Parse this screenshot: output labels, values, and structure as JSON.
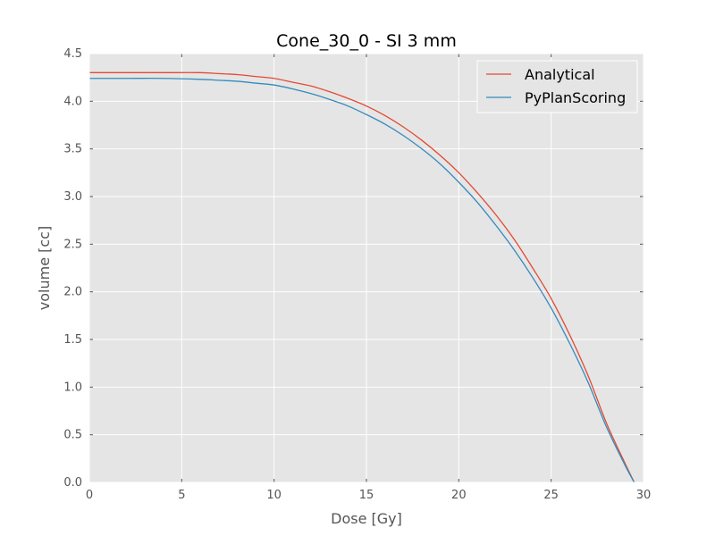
{
  "chart_data": {
    "type": "line",
    "title": "Cone_30_0 - SI 3 mm",
    "xlabel": "Dose [Gy]",
    "ylabel": "volume [cc]",
    "xlim": [
      0,
      30
    ],
    "ylim": [
      0,
      4.5
    ],
    "xticks": [
      "0",
      "5",
      "10",
      "15",
      "20",
      "25",
      "30"
    ],
    "yticks": [
      "0.0",
      "0.5",
      "1.0",
      "1.5",
      "2.0",
      "2.5",
      "3.0",
      "3.5",
      "4.0",
      "4.5"
    ],
    "grid": true,
    "legend_position": "top-right",
    "background": "#e5e5e5",
    "series": [
      {
        "name": "Analytical",
        "color": "#e24a33",
        "x": [
          0,
          2,
          4,
          6,
          7,
          8,
          9,
          10,
          11,
          12,
          13,
          14,
          15,
          16,
          17,
          18,
          19,
          20,
          21,
          22,
          23,
          24,
          25,
          26,
          27,
          28,
          29,
          29.5
        ],
        "y": [
          4.3,
          4.3,
          4.3,
          4.3,
          4.29,
          4.28,
          4.26,
          4.24,
          4.2,
          4.16,
          4.1,
          4.03,
          3.95,
          3.85,
          3.73,
          3.59,
          3.43,
          3.25,
          3.04,
          2.81,
          2.55,
          2.25,
          1.93,
          1.55,
          1.12,
          0.62,
          0.2,
          0.0
        ]
      },
      {
        "name": "PyPlanScoring",
        "color": "#348abd",
        "x": [
          0,
          2,
          4,
          6,
          7,
          8,
          9,
          10,
          11,
          12,
          13,
          14,
          15,
          16,
          17,
          18,
          19,
          20,
          21,
          22,
          23,
          24,
          25,
          26,
          27,
          28,
          29,
          29.5
        ],
        "y": [
          4.24,
          4.24,
          4.24,
          4.23,
          4.22,
          4.21,
          4.19,
          4.17,
          4.13,
          4.08,
          4.02,
          3.95,
          3.86,
          3.76,
          3.64,
          3.5,
          3.34,
          3.15,
          2.94,
          2.7,
          2.44,
          2.15,
          1.83,
          1.46,
          1.05,
          0.58,
          0.18,
          0.0
        ]
      }
    ]
  }
}
